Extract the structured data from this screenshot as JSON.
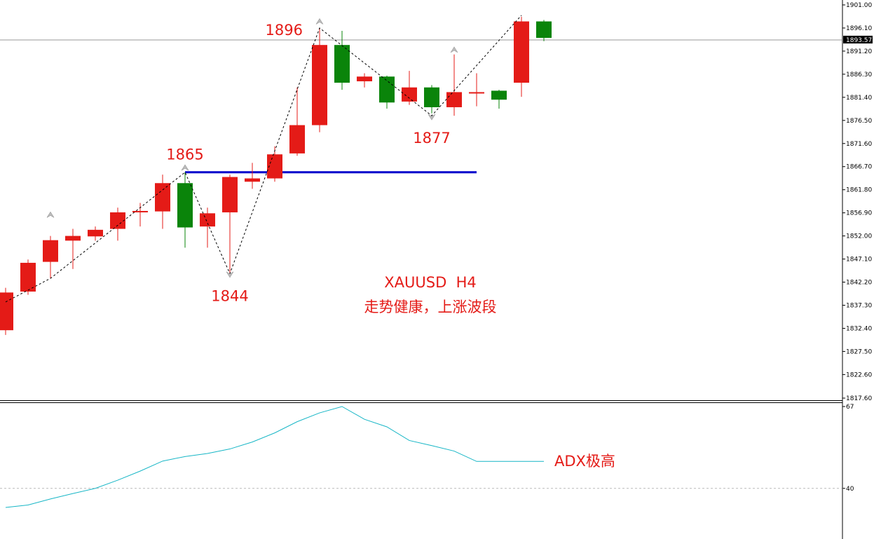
{
  "chart_data": [
    {
      "type": "candlestick",
      "symbol_timeframe": "XAUUSD  H4",
      "note": "走势健康，上涨波段",
      "y_ticks": [
        "1901.00",
        "1896.10",
        "1891.20",
        "1886.30",
        "1881.40",
        "1876.50",
        "1871.60",
        "1866.70",
        "1861.80",
        "1856.90",
        "1852.00",
        "1847.10",
        "1842.20",
        "1837.30",
        "1832.40",
        "1827.50",
        "1822.60",
        "1817.60"
      ],
      "current_price": "1893.57",
      "ylim": [
        1817.6,
        1901.0
      ],
      "candles": [
        {
          "open": 1840.0,
          "high": 1841.0,
          "low": 1831.0,
          "close": 1832.0
        },
        {
          "open": 1840.2,
          "high": 1847.0,
          "low": 1839.5,
          "close": 1846.3
        },
        {
          "open": 1846.5,
          "high": 1852.0,
          "low": 1843.0,
          "close": 1851.1
        },
        {
          "open": 1851.0,
          "high": 1853.5,
          "low": 1845.0,
          "close": 1852.0
        },
        {
          "open": 1851.9,
          "high": 1854.0,
          "low": 1851.0,
          "close": 1853.3
        },
        {
          "open": 1853.5,
          "high": 1858.0,
          "low": 1851.0,
          "close": 1857.0
        },
        {
          "open": 1857.0,
          "high": 1859.0,
          "low": 1854.0,
          "close": 1857.3
        },
        {
          "open": 1857.2,
          "high": 1865.0,
          "low": 1853.5,
          "close": 1863.2
        },
        {
          "open": 1863.2,
          "high": 1865.5,
          "low": 1849.5,
          "close": 1853.8
        },
        {
          "open": 1854.0,
          "high": 1858.0,
          "low": 1849.5,
          "close": 1856.8
        },
        {
          "open": 1857.0,
          "high": 1865.0,
          "low": 1844.0,
          "close": 1864.5
        },
        {
          "open": 1863.5,
          "high": 1867.5,
          "low": 1862.0,
          "close": 1864.2
        },
        {
          "open": 1864.2,
          "high": 1871.0,
          "low": 1863.5,
          "close": 1869.3
        },
        {
          "open": 1869.5,
          "high": 1883.5,
          "low": 1869.0,
          "close": 1875.5
        },
        {
          "open": 1875.5,
          "high": 1896.1,
          "low": 1874.0,
          "close": 1892.5
        },
        {
          "open": 1892.5,
          "high": 1895.5,
          "low": 1883.0,
          "close": 1884.5
        },
        {
          "open": 1884.8,
          "high": 1886.5,
          "low": 1883.5,
          "close": 1885.8
        },
        {
          "open": 1885.8,
          "high": 1886.0,
          "low": 1879.0,
          "close": 1880.3
        },
        {
          "open": 1880.5,
          "high": 1887.0,
          "low": 1879.8,
          "close": 1883.5
        },
        {
          "open": 1883.5,
          "high": 1884.0,
          "low": 1878.0,
          "close": 1879.3
        },
        {
          "open": 1879.3,
          "high": 1890.5,
          "low": 1877.5,
          "close": 1882.5
        },
        {
          "open": 1882.3,
          "high": 1886.5,
          "low": 1879.5,
          "close": 1882.5
        },
        {
          "open": 1882.8,
          "high": 1883.0,
          "low": 1879.0,
          "close": 1880.9
        },
        {
          "open": 1884.5,
          "high": 1898.5,
          "low": 1881.5,
          "close": 1897.5
        },
        {
          "open": 1897.5,
          "high": 1897.8,
          "low": 1893.3,
          "close": 1894.0
        }
      ],
      "candle_colors": [
        "red",
        "red",
        "red",
        "red",
        "red",
        "red",
        "red",
        "red",
        "green",
        "red",
        "red",
        "red",
        "red",
        "red",
        "red",
        "green",
        "red",
        "green",
        "red",
        "green",
        "red",
        "red",
        "green",
        "red",
        "green"
      ],
      "horizontal_level": {
        "price": 1865.5,
        "from_index": 8,
        "to_index": 21,
        "color": "#0000cc"
      },
      "zigzag": [
        {
          "index": 0,
          "price": 1838.0
        },
        {
          "index": 2,
          "price": 1843.0
        },
        {
          "index": 8,
          "price": 1865.5
        },
        {
          "index": 10,
          "price": 1844.0
        },
        {
          "index": 14,
          "price": 1896.1
        },
        {
          "index": 19,
          "price": 1877.5
        },
        {
          "index": 23,
          "price": 1898.8
        }
      ],
      "fractal_up_markers": [
        {
          "index": 2,
          "price": 1856.5
        },
        {
          "index": 8,
          "price": 1866.5
        },
        {
          "index": 14,
          "price": 1897.5
        },
        {
          "index": 20,
          "price": 1891.5
        }
      ],
      "fractal_down_markers": [
        {
          "index": 10,
          "price": 1843.8
        },
        {
          "index": 19,
          "price": 1877.2
        }
      ],
      "price_labels": [
        {
          "text": "1865",
          "index": 8,
          "price": 1864.2,
          "place": "above"
        },
        {
          "text": "1844",
          "index": 10,
          "price": 1844.0,
          "place": "below"
        },
        {
          "text": "1896",
          "index": 13,
          "price": 1896.1,
          "place": "left"
        },
        {
          "text": "1877",
          "index": 19,
          "price": 1877.5,
          "place": "below"
        }
      ],
      "colors": {
        "up": "#e41b17",
        "down": "#0a840a",
        "zigzag": "#000000",
        "level": "#0000cc",
        "grid": "#9a9a9a"
      }
    },
    {
      "type": "line",
      "indicator": "ADX",
      "annotation": "ADX极高",
      "y_ticks": [
        "67",
        "40"
      ],
      "ylim": [
        30,
        67
      ],
      "x": [
        0,
        1,
        2,
        3,
        4,
        5,
        6,
        7,
        8,
        9,
        10,
        11,
        12,
        13,
        14,
        15,
        16,
        17,
        18,
        19,
        20,
        21,
        22,
        23,
        24
      ],
      "values": [
        33.7,
        34.5,
        36.5,
        38.3,
        40.0,
        42.7,
        45.7,
        49.0,
        50.5,
        51.5,
        53.0,
        55.3,
        58.3,
        62.0,
        64.9,
        67.0,
        62.8,
        60.3,
        55.8,
        54.1,
        52.3,
        48.9,
        48.9,
        48.9,
        48.9
      ],
      "line_color": "#17b6c6",
      "reference_level": 40
    }
  ]
}
